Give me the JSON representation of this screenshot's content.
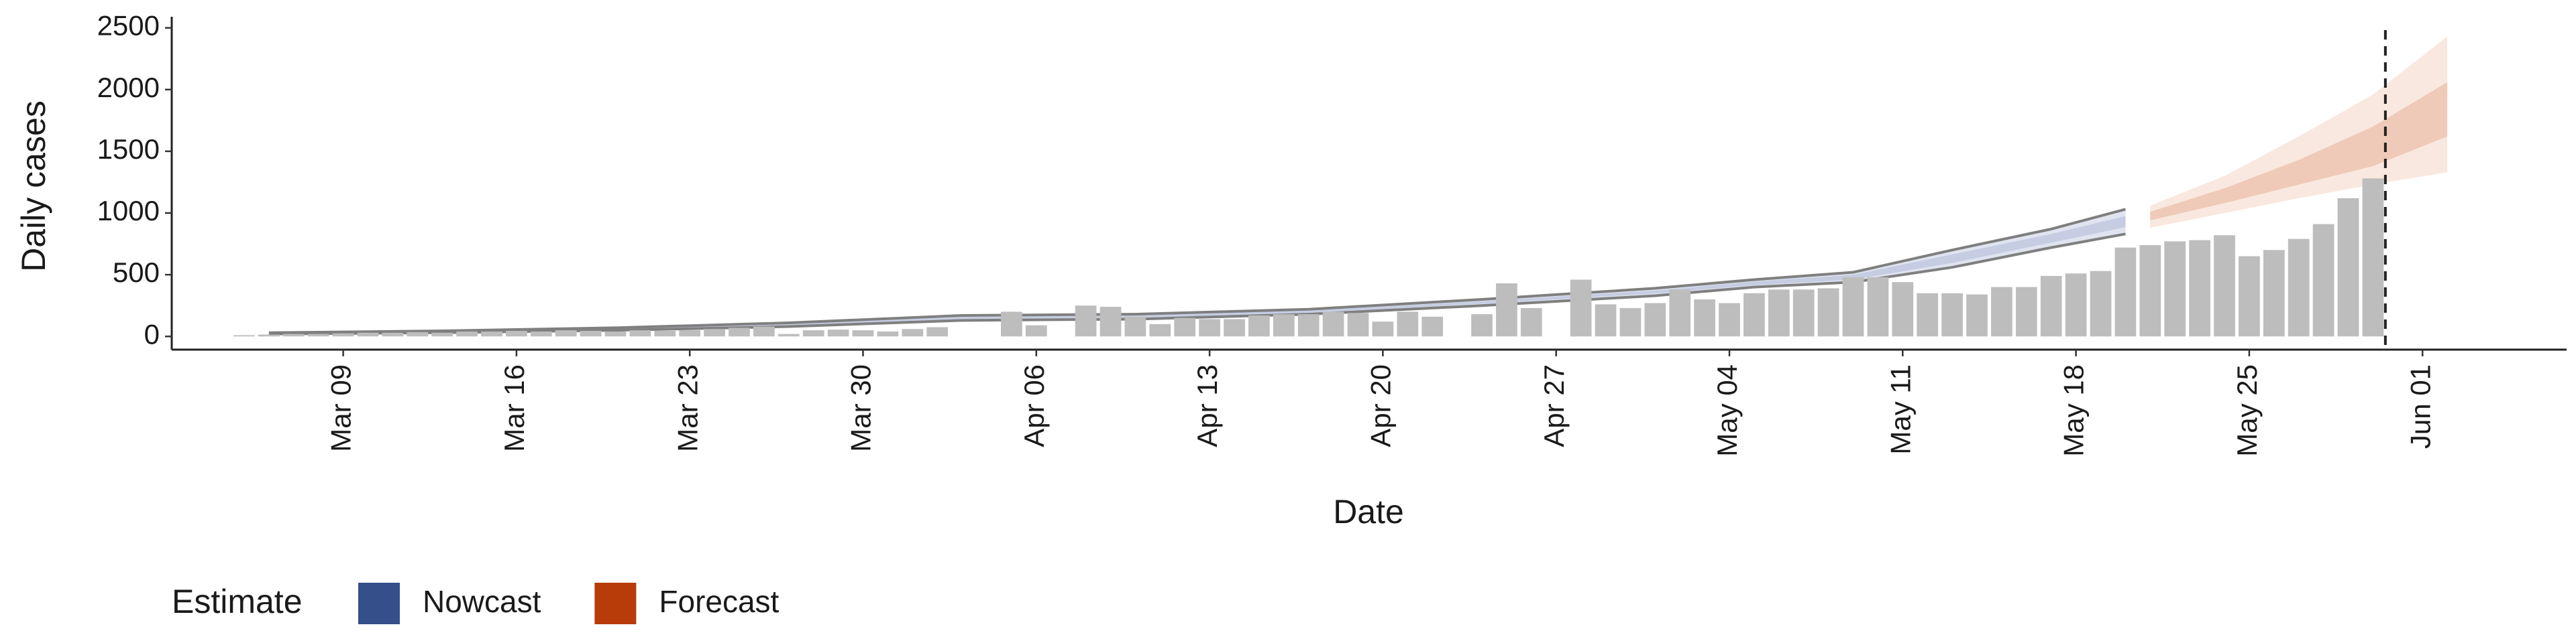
{
  "chart_data": {
    "type": "bar",
    "y_label": "Daily cases",
    "x_label": "Date",
    "legend_title": "Estimate",
    "categories": [
      "Mar 05",
      "Mar 06",
      "Mar 07",
      "Mar 08",
      "Mar 09",
      "Mar 10",
      "Mar 11",
      "Mar 12",
      "Mar 13",
      "Mar 14",
      "Mar 15",
      "Mar 16",
      "Mar 17",
      "Mar 18",
      "Mar 19",
      "Mar 20",
      "Mar 21",
      "Mar 22",
      "Mar 23",
      "Mar 24",
      "Mar 25",
      "Mar 26",
      "Mar 27",
      "Mar 28",
      "Mar 29",
      "Mar 30",
      "Mar 31",
      "Apr 01",
      "Apr 02",
      "Apr 03",
      "Apr 04",
      "Apr 05",
      "Apr 06",
      "Apr 07",
      "Apr 08",
      "Apr 09",
      "Apr 10",
      "Apr 11",
      "Apr 12",
      "Apr 13",
      "Apr 14",
      "Apr 15",
      "Apr 16",
      "Apr 17",
      "Apr 18",
      "Apr 19",
      "Apr 20",
      "Apr 21",
      "Apr 22",
      "Apr 23",
      "Apr 24",
      "Apr 25",
      "Apr 26",
      "Apr 27",
      "Apr 28",
      "Apr 29",
      "Apr 30",
      "May 01",
      "May 02",
      "May 03",
      "May 04",
      "May 05",
      "May 06",
      "May 07",
      "May 08",
      "May 09",
      "May 10",
      "May 11",
      "May 12",
      "May 13",
      "May 14",
      "May 15",
      "May 16",
      "May 17",
      "May 18",
      "May 19",
      "May 20",
      "May 21",
      "May 22",
      "May 23",
      "May 24",
      "May 25",
      "May 26",
      "May 27",
      "May 28",
      "May 29",
      "May 30",
      "May 31",
      "Jun 01",
      "Jun 02",
      "Jun 03"
    ],
    "values": [
      10,
      15,
      20,
      20,
      25,
      30,
      30,
      35,
      30,
      40,
      40,
      45,
      40,
      50,
      45,
      40,
      50,
      45,
      50,
      60,
      70,
      80,
      20,
      50,
      55,
      50,
      40,
      60,
      75,
      null,
      null,
      200,
      90,
      null,
      250,
      240,
      160,
      100,
      150,
      140,
      140,
      170,
      180,
      180,
      200,
      190,
      120,
      200,
      160,
      null,
      180,
      430,
      230,
      null,
      460,
      260,
      230,
      270,
      380,
      300,
      270,
      350,
      380,
      380,
      390,
      480,
      480,
      440,
      350,
      350,
      340,
      400,
      400,
      490,
      510,
      530,
      720,
      740,
      770,
      780,
      820,
      650,
      700,
      790,
      910,
      1120,
      1280,
      null,
      null,
      null,
      null
    ],
    "color": "#bdbdbd",
    "bands": [
      {
        "name": "Nowcast",
        "color": "#354f8a",
        "outer_fill": "#dde1ee",
        "inner_fill": "#c3cae0",
        "edge_color": "#7f7f7f",
        "x": [
          "Mar 06",
          "Mar 13",
          "Mar 20",
          "Mar 27",
          "Apr 03",
          "Apr 10",
          "Apr 17",
          "Apr 24",
          "May 01",
          "May 05",
          "May 09",
          "May 13",
          "May 17",
          "May 20"
        ],
        "lower": [
          20,
          30,
          50,
          80,
          130,
          140,
          180,
          250,
          330,
          400,
          440,
          560,
          720,
          830
        ],
        "upper": [
          30,
          45,
          70,
          110,
          170,
          180,
          220,
          300,
          390,
          460,
          520,
          700,
          870,
          1030
        ],
        "inner_lower": [
          23,
          34,
          56,
          90,
          142,
          152,
          190,
          265,
          348,
          415,
          460,
          595,
          760,
          885
        ],
        "inner_upper": [
          27,
          41,
          64,
          100,
          158,
          168,
          210,
          285,
          372,
          445,
          500,
          665,
          830,
          975
        ]
      },
      {
        "name": "Forecast",
        "color": "#b83c0a",
        "outer_fill": "#f8e5dc",
        "inner_fill": "#edc6b4",
        "edge_color": null,
        "x": [
          "May 21",
          "May 24",
          "May 27",
          "May 30",
          "Jun 02"
        ],
        "lower": [
          880,
          1000,
          1120,
          1230,
          1330
        ],
        "upper": [
          1060,
          1300,
          1620,
          1960,
          2430
        ],
        "inner_lower": [
          940,
          1080,
          1230,
          1380,
          1620
        ],
        "inner_upper": [
          1010,
          1200,
          1430,
          1700,
          2060
        ]
      }
    ],
    "vline": "May 30",
    "ylim": [
      -107,
      2590
    ],
    "yticks": [
      0,
      500,
      1000,
      1500,
      2000,
      2500
    ],
    "xticks": [
      "Mar 09",
      "Mar 16",
      "Mar 23",
      "Mar 30",
      "Apr 06",
      "Apr 13",
      "Apr 20",
      "Apr 27",
      "May 04",
      "May 11",
      "May 18",
      "May 25",
      "Jun 01"
    ],
    "grid": false
  }
}
